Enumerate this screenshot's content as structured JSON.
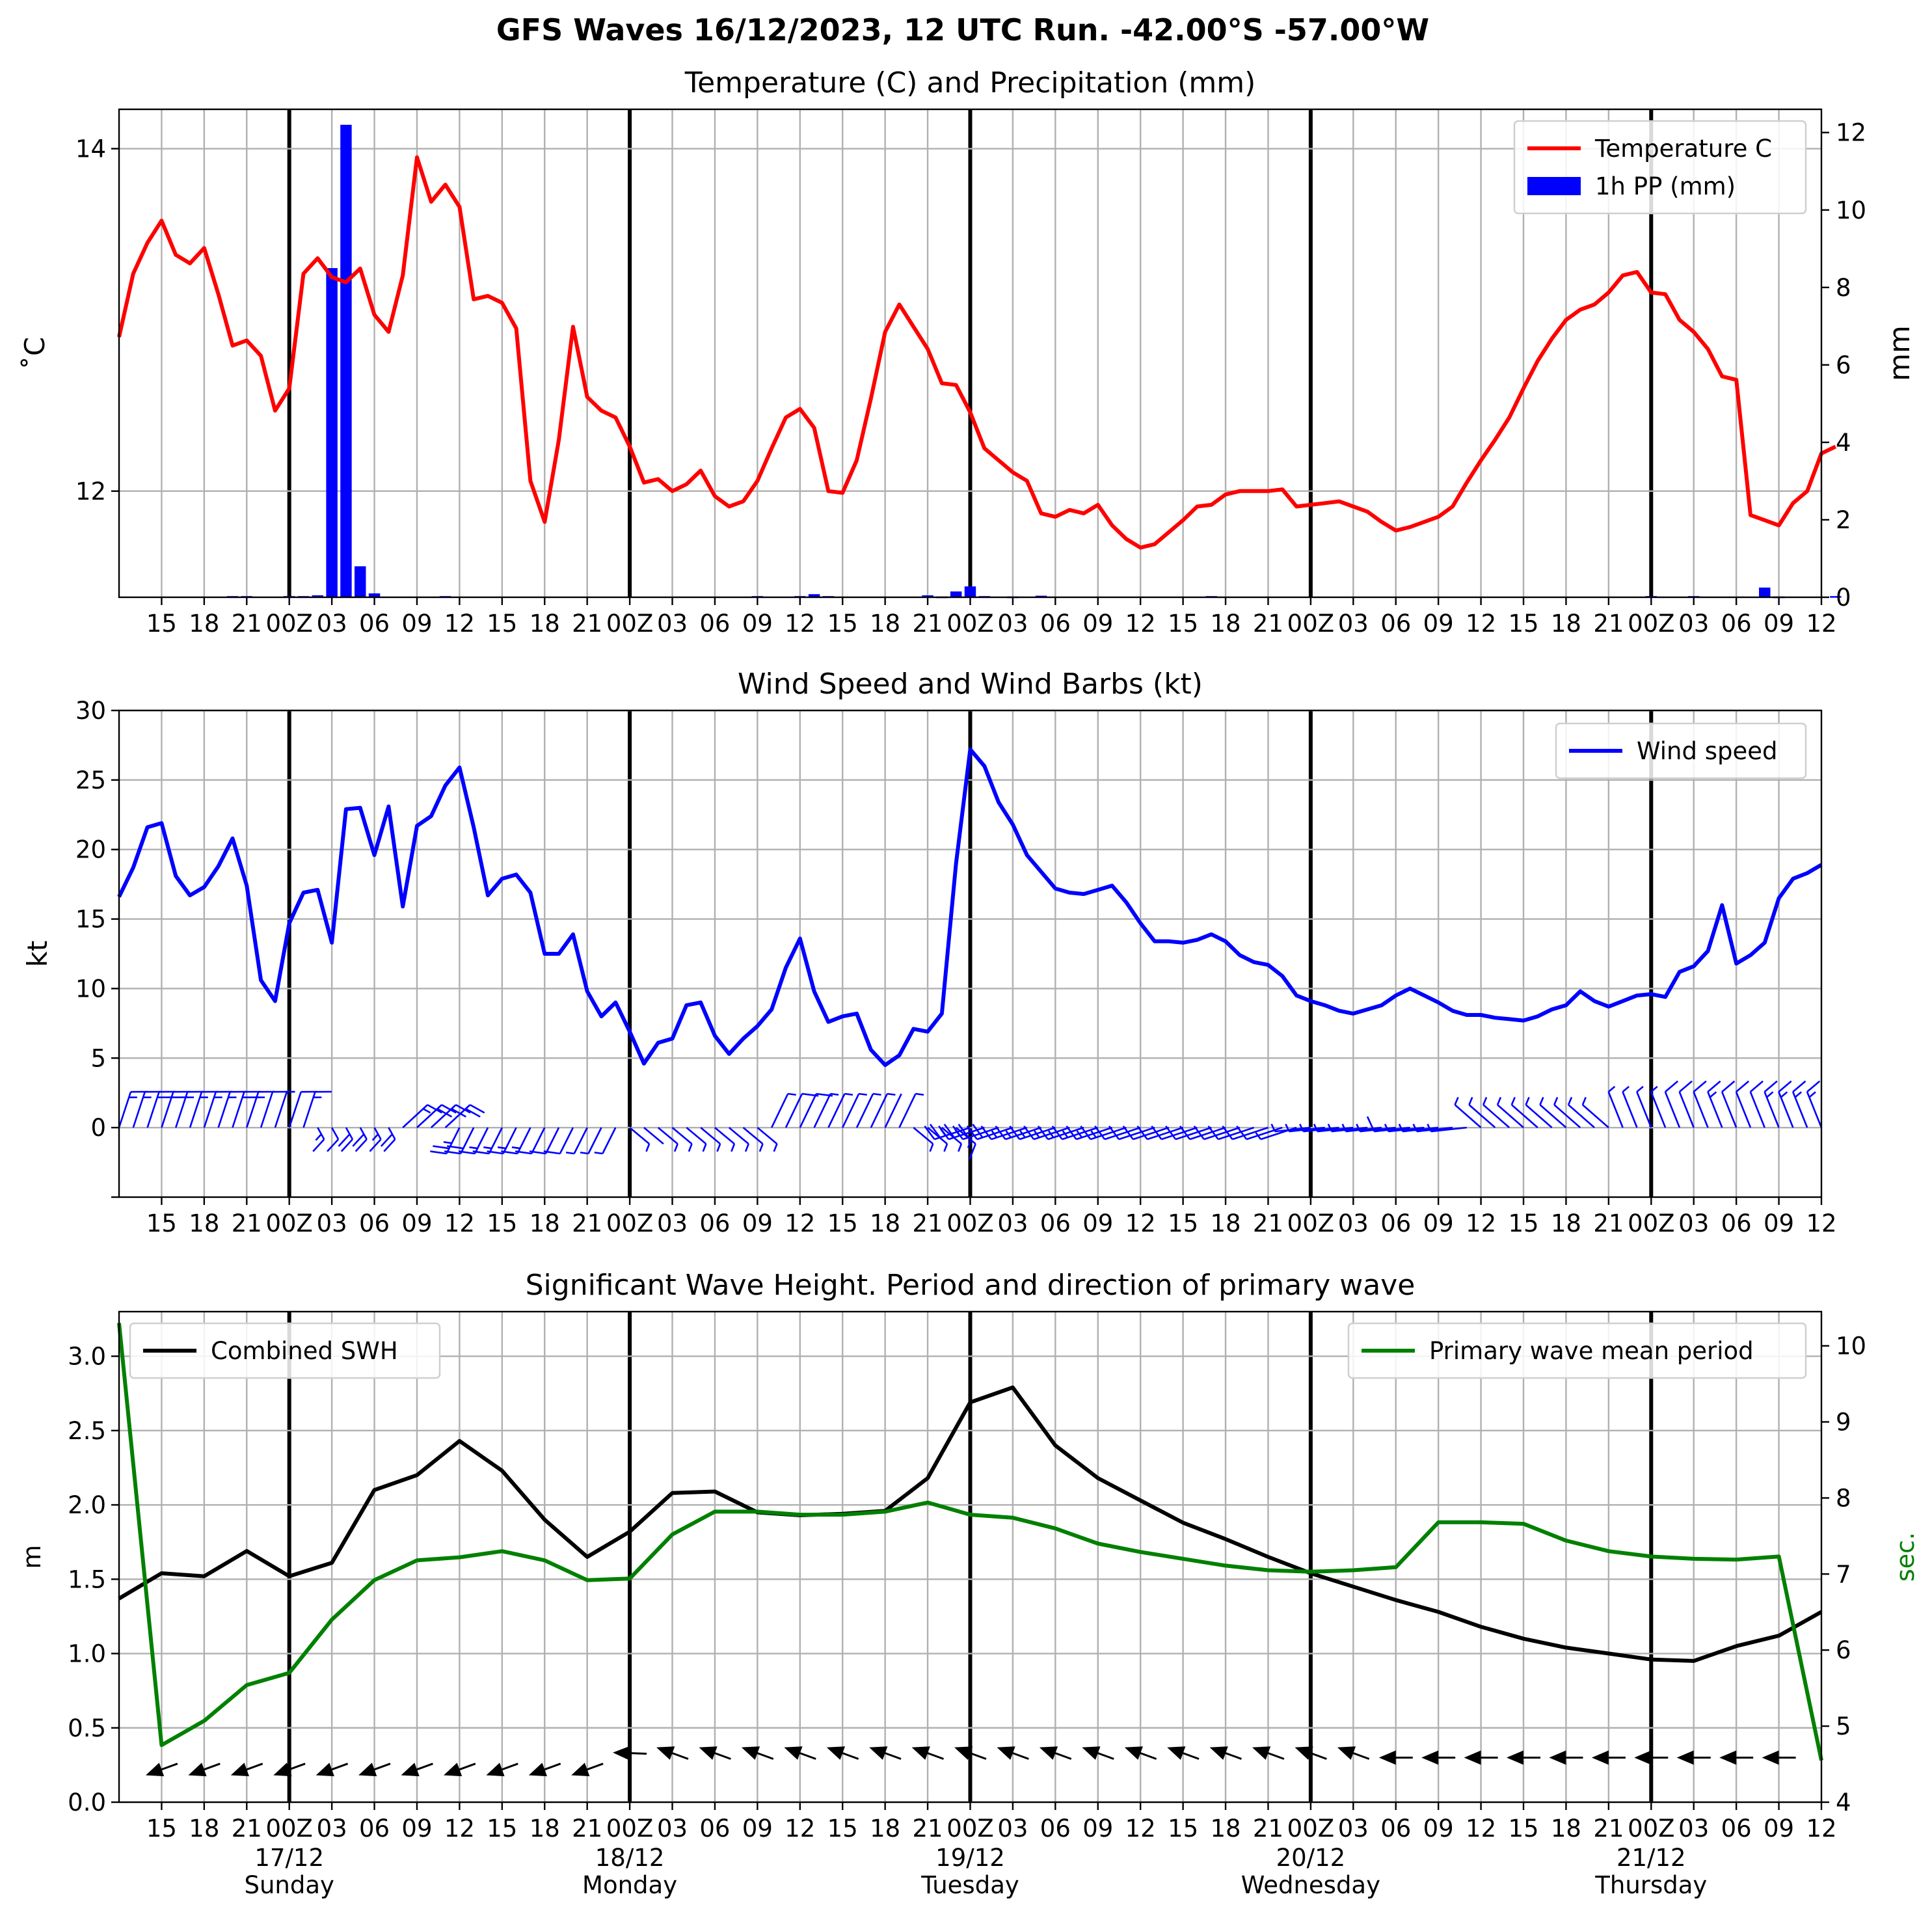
{
  "figure": {
    "title": "GFS Waves 16/12/2023, 12 UTC Run. -42.00°S -57.00°W"
  },
  "time_axis": {
    "tick_labels": [
      "15",
      "18",
      "21",
      "00Z",
      "03",
      "06",
      "09",
      "12",
      "15",
      "18",
      "21",
      "00Z",
      "03",
      "06",
      "09",
      "12",
      "15",
      "18",
      "21",
      "00Z",
      "03",
      "06",
      "09",
      "12",
      "15",
      "18",
      "21",
      "00Z",
      "03",
      "06",
      "09",
      "12",
      "15",
      "18",
      "21",
      "00Z",
      "03",
      "06",
      "09",
      "12"
    ],
    "day_labels": [
      {
        "date": "17/12",
        "weekday": "Sunday"
      },
      {
        "date": "18/12",
        "weekday": "Monday"
      },
      {
        "date": "19/12",
        "weekday": "Tuesday"
      },
      {
        "date": "20/12",
        "weekday": "Wednesday"
      },
      {
        "date": "21/12",
        "weekday": "Thursday"
      }
    ]
  },
  "chart_data": [
    {
      "type": "line",
      "title": "Temperature (C) and Precipitation (mm)",
      "x_unit": "hours from 16/12/2023 12 UTC",
      "ylabel": "$^\\circ$C",
      "ylabel_display": "˚C",
      "y2label": "mm",
      "ylim": [
        11.38,
        14.23
      ],
      "y2lim": [
        0,
        12.6
      ],
      "yticks": [
        12,
        14
      ],
      "y2ticks": [
        0,
        2,
        4,
        6,
        8,
        10,
        12
      ],
      "legend": {
        "placement": "top-right",
        "entries": [
          "Temperature C",
          "1h PP (mm)"
        ]
      },
      "series": [
        {
          "name": "Temperature C",
          "color": "#ff0000",
          "x_step_hours": 1,
          "x_start": 0,
          "values": [
            12.9,
            13.27,
            13.45,
            13.58,
            13.38,
            13.33,
            13.42,
            13.15,
            12.85,
            12.88,
            12.79,
            12.47,
            12.6,
            13.27,
            13.36,
            13.25,
            13.22,
            13.3,
            13.03,
            12.93,
            13.26,
            13.95,
            13.69,
            13.79,
            13.66,
            13.12,
            13.14,
            13.1,
            12.95,
            12.06,
            11.82,
            12.3,
            12.96,
            12.55,
            12.47,
            12.43,
            12.26,
            12.05,
            12.07,
            12.0,
            12.04,
            12.12,
            11.97,
            11.91,
            11.94,
            12.06,
            12.25,
            12.43,
            12.48,
            12.37,
            12.0,
            11.99,
            12.18,
            12.54,
            12.93,
            13.09,
            12.96,
            12.83,
            12.63,
            12.62,
            12.46,
            12.25,
            12.18,
            12.11,
            12.06,
            11.87,
            11.85,
            11.89,
            11.87,
            11.92,
            11.8,
            11.72,
            11.67,
            11.69,
            11.76,
            11.83,
            11.91,
            11.92,
            11.98,
            12.0,
            12.0,
            12.0,
            12.01,
            11.91,
            11.92,
            11.93,
            11.94,
            11.91,
            11.88,
            11.82,
            11.77,
            11.79,
            11.82,
            11.85,
            11.91,
            12.05,
            12.18,
            12.3,
            12.43,
            12.6,
            12.76,
            12.89,
            13.0,
            13.06,
            13.09,
            13.16,
            13.26,
            13.28,
            13.16,
            13.15,
            13.0,
            12.93,
            12.83,
            12.67,
            12.65,
            11.86,
            11.83,
            11.8,
            11.93,
            12.0,
            12.22,
            12.26
          ]
        },
        {
          "name": "1h PP (mm)",
          "color": "#0000ff",
          "kind": "bar",
          "x_step_hours": 1,
          "x_start": 0,
          "values": [
            0,
            0,
            0,
            0,
            0,
            0,
            0,
            0,
            0.03,
            0.03,
            0,
            0,
            0.03,
            0.03,
            0.05,
            8.5,
            12.2,
            0.8,
            0.1,
            0,
            0,
            0,
            0,
            0.03,
            0,
            0,
            0,
            0,
            0,
            0,
            0,
            0,
            0,
            0,
            0,
            0,
            0,
            0,
            0,
            0,
            0,
            0,
            0,
            0,
            0,
            0.03,
            0,
            0,
            0.03,
            0.08,
            0.03,
            0,
            0,
            0,
            0,
            0,
            0,
            0.05,
            0.02,
            0.15,
            0.28,
            0.03,
            0,
            0.02,
            0,
            0.04,
            0,
            0,
            0,
            0,
            0,
            0,
            0,
            0,
            0,
            0,
            0,
            0.03,
            0,
            0,
            0,
            0,
            0,
            0,
            0,
            0,
            0,
            0,
            0,
            0,
            0,
            0,
            0,
            0,
            0,
            0,
            0,
            0,
            0,
            0,
            0,
            0,
            0,
            0,
            0,
            0,
            0,
            0,
            0.03,
            0,
            0,
            0.03,
            0,
            0,
            0,
            0,
            0.25,
            0.02,
            0,
            0,
            0,
            0.03
          ]
        }
      ]
    },
    {
      "type": "line",
      "title": "Wind Speed and Wind Barbs (kt)",
      "x_unit": "hours from 16/12/2023 12 UTC",
      "ylabel": "kt",
      "ylim": [
        -5,
        30
      ],
      "yticks": [
        0,
        5,
        10,
        15,
        20,
        25,
        30
      ],
      "legend": {
        "placement": "top-right",
        "entries": [
          "Wind speed"
        ]
      },
      "series": [
        {
          "name": "Wind speed",
          "color": "#0000ff",
          "x_step_hours": 1,
          "x_start": 0,
          "values": [
            16.6,
            18.7,
            21.6,
            21.9,
            18.1,
            16.7,
            17.3,
            18.8,
            20.8,
            17.4,
            10.6,
            9.1,
            14.7,
            16.9,
            17.1,
            13.3,
            22.9,
            23.0,
            19.6,
            23.1,
            15.9,
            21.7,
            22.4,
            24.6,
            25.9,
            21.6,
            16.7,
            17.9,
            18.2,
            16.9,
            12.5,
            12.5,
            13.9,
            9.8,
            8.0,
            9.0,
            6.9,
            4.6,
            6.1,
            6.4,
            8.8,
            9.0,
            6.6,
            5.3,
            6.4,
            7.3,
            8.5,
            11.5,
            13.6,
            9.8,
            7.6,
            8.0,
            8.2,
            5.6,
            4.5,
            5.2,
            7.1,
            6.9,
            8.2,
            19.0,
            27.2,
            26.0,
            23.4,
            21.8,
            19.6,
            18.4,
            17.2,
            16.9,
            16.8,
            17.1,
            17.4,
            16.2,
            14.7,
            13.4,
            13.4,
            13.3,
            13.5,
            13.9,
            13.4,
            12.4,
            11.9,
            11.7,
            10.9,
            9.5,
            9.1,
            8.8,
            8.4,
            8.2,
            8.5,
            8.8,
            9.5,
            10.0,
            9.5,
            9.0,
            8.4,
            8.1,
            8.1,
            7.9,
            7.8,
            7.7,
            8.0,
            8.5,
            8.8,
            9.8,
            9.1,
            8.7,
            9.1,
            9.5,
            9.6,
            9.4,
            11.2,
            11.6,
            12.7,
            16.0,
            11.8,
            12.4,
            13.3,
            16.5,
            17.9,
            18.3,
            18.9
          ]
        }
      ],
      "wind_barbs": {
        "placement": "along y = 0",
        "source": "model wind direction, hourly"
      }
    },
    {
      "type": "line",
      "title": "Significant Wave Height. Period and direction of primary wave",
      "x_unit": "hours from 16/12/2023 12 UTC",
      "ylabel": "m",
      "y2label": "sec.",
      "ylim": [
        0.0,
        3.3
      ],
      "y2lim": [
        4.0,
        10.45
      ],
      "yticks": [
        0.0,
        0.5,
        1.0,
        1.5,
        2.0,
        2.5,
        3.0
      ],
      "y2ticks": [
        4,
        5,
        6,
        7,
        8,
        9,
        10
      ],
      "legend": [
        {
          "placement": "top-left",
          "entries": [
            "Combined SWH"
          ]
        },
        {
          "placement": "top-right",
          "entries": [
            "Primary wave mean period"
          ]
        }
      ],
      "series": [
        {
          "name": "Combined SWH",
          "color": "#000000",
          "x_step_hours": 3,
          "x_start": 0,
          "values": [
            1.37,
            1.54,
            1.52,
            1.69,
            1.52,
            1.61,
            2.1,
            2.2,
            2.43,
            2.23,
            1.9,
            1.65,
            1.82,
            2.08,
            2.09,
            1.95,
            1.93,
            1.94,
            1.96,
            2.18,
            2.69,
            2.79,
            2.4,
            2.18,
            2.03,
            1.88,
            1.77,
            1.65,
            1.54,
            1.45,
            1.36,
            1.28,
            1.18,
            1.1,
            1.04,
            1.0,
            0.96,
            0.95,
            1.05,
            1.12,
            1.28
          ]
        },
        {
          "name": "Primary wave mean period",
          "color": "#008000",
          "axis": "right",
          "x_step_hours": 3,
          "x_start": 0,
          "values": [
            10.3,
            4.75,
            5.07,
            5.54,
            5.7,
            6.4,
            6.92,
            7.18,
            7.22,
            7.3,
            7.18,
            6.92,
            6.94,
            7.52,
            7.82,
            7.82,
            7.78,
            7.78,
            7.82,
            7.94,
            7.78,
            7.74,
            7.6,
            7.4,
            7.29,
            7.2,
            7.11,
            7.05,
            7.03,
            7.05,
            7.09,
            7.68,
            7.68,
            7.66,
            7.44,
            7.3,
            7.23,
            7.2,
            7.19,
            7.23,
            4.55
          ]
        }
      ],
      "wave_direction_arrows": {
        "placement": "near y = 0.3",
        "source": "primary wave direction, 3-hourly"
      }
    }
  ]
}
